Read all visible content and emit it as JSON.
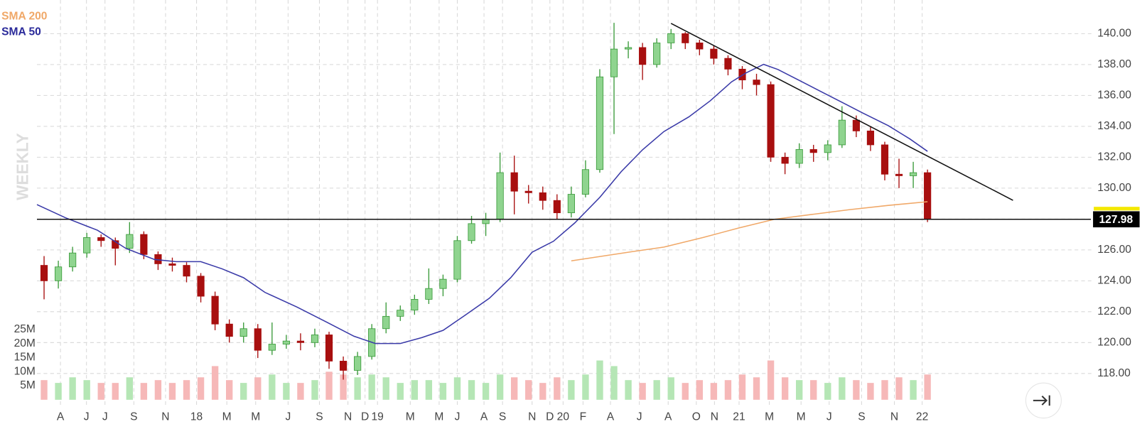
{
  "chart_data": {
    "type": "candlestick",
    "legend": [
      "SMA 200",
      "SMA 50"
    ],
    "period_label": "WEEKLY",
    "x": [
      2,
      6,
      10,
      14,
      18,
      22,
      26,
      30,
      34,
      38,
      42,
      46,
      50,
      54,
      58,
      62,
      66,
      70,
      74,
      78,
      82,
      86,
      90,
      94,
      98,
      102,
      106,
      110,
      114,
      118,
      122,
      126,
      130,
      134,
      138,
      142,
      146,
      150,
      154,
      158,
      162,
      166,
      170,
      174,
      178,
      182,
      186,
      190,
      194,
      198,
      202,
      206,
      210,
      214,
      218,
      222,
      226,
      230,
      234,
      238,
      242,
      246,
      250
    ],
    "open": [
      125.0,
      124.0,
      124.9,
      125.8,
      126.8,
      126.6,
      126.1,
      127.0,
      125.7,
      125.1,
      125.0,
      124.3,
      123.0,
      121.2,
      120.4,
      120.9,
      119.5,
      119.9,
      120.1,
      120.0,
      120.5,
      118.8,
      118.2,
      119.1,
      120.9,
      121.7,
      122.1,
      122.8,
      123.5,
      124.1,
      126.6,
      127.7,
      128.0,
      131.0,
      129.8,
      129.7,
      129.2,
      128.4,
      129.6,
      131.2,
      137.2,
      139.0,
      139.1,
      138.0,
      139.4,
      140.0,
      139.4,
      139.0,
      138.4,
      137.7,
      137.0,
      136.7,
      132.0,
      131.6,
      132.5,
      132.3,
      132.8,
      134.4,
      133.7,
      132.8,
      130.9,
      130.8,
      131.0
    ],
    "high": [
      125.6,
      125.3,
      126.2,
      127.1,
      127.0,
      126.8,
      127.8,
      127.2,
      125.9,
      125.5,
      125.2,
      124.5,
      123.3,
      121.5,
      121.3,
      121.2,
      121.3,
      120.5,
      120.6,
      120.9,
      120.7,
      119.1,
      119.4,
      121.2,
      122.6,
      122.4,
      123.1,
      124.8,
      124.4,
      126.9,
      128.2,
      128.4,
      132.3,
      132.1,
      130.2,
      130.1,
      129.6,
      130.1,
      131.8,
      137.7,
      140.7,
      139.5,
      139.4,
      139.7,
      140.3,
      140.1,
      139.6,
      139.2,
      138.6,
      137.9,
      137.4,
      136.9,
      132.3,
      132.9,
      132.8,
      133.1,
      135.3,
      134.7,
      134.0,
      133.0,
      131.9,
      131.7,
      131.2
    ],
    "low": [
      122.8,
      123.5,
      124.6,
      125.5,
      126.2,
      125.0,
      125.8,
      125.4,
      124.7,
      124.6,
      123.9,
      122.6,
      120.8,
      120.0,
      120.0,
      119.0,
      119.2,
      119.6,
      119.5,
      119.7,
      118.3,
      117.6,
      117.9,
      118.9,
      120.6,
      121.4,
      121.8,
      122.5,
      123.0,
      123.9,
      126.4,
      126.9,
      127.8,
      128.3,
      129.0,
      128.6,
      128.0,
      128.1,
      129.4,
      131.0,
      133.5,
      138.4,
      137.0,
      137.8,
      139.0,
      139.0,
      138.6,
      138.0,
      137.3,
      136.4,
      136.0,
      131.7,
      130.9,
      131.3,
      131.7,
      131.8,
      132.6,
      133.3,
      132.4,
      130.5,
      130.0,
      130.0,
      127.8
    ],
    "close": [
      124.0,
      124.9,
      125.8,
      126.8,
      126.6,
      126.1,
      127.0,
      125.7,
      125.1,
      125.0,
      124.3,
      123.0,
      121.2,
      120.4,
      120.9,
      119.5,
      119.9,
      120.1,
      120.0,
      120.5,
      118.8,
      118.2,
      119.1,
      120.9,
      121.7,
      122.1,
      122.8,
      123.5,
      124.1,
      126.6,
      127.7,
      128.0,
      131.0,
      129.8,
      129.7,
      129.2,
      128.4,
      129.6,
      131.2,
      137.2,
      139.0,
      139.1,
      138.0,
      139.4,
      140.0,
      139.4,
      139.0,
      138.4,
      137.7,
      137.0,
      136.7,
      132.0,
      131.6,
      132.5,
      132.3,
      132.8,
      134.4,
      133.7,
      132.8,
      130.9,
      130.8,
      131.0,
      127.98
    ],
    "volume": [
      7,
      6,
      8,
      7,
      6,
      6,
      8,
      6,
      7,
      6,
      7,
      8,
      12,
      7,
      6,
      8,
      9,
      6,
      6,
      7,
      10,
      9,
      8,
      9,
      8,
      6,
      7,
      7,
      6,
      8,
      7,
      6,
      9,
      8,
      7,
      6,
      8,
      7,
      9,
      14,
      12,
      7,
      6,
      7,
      8,
      6,
      7,
      6,
      7,
      9,
      8,
      14,
      8,
      7,
      7,
      6,
      8,
      7,
      6,
      7,
      8,
      7,
      9
    ],
    "up_color": "#8fd48f",
    "down_color": "#a80f0f",
    "vol_up_color": "#b5e6b5",
    "vol_down_color": "#f6b8b8",
    "sma": [
      {
        "name": "SMA 200",
        "color": "#f0a868",
        "x": [
          150,
          166,
          176,
          187,
          197,
          207,
          218,
          228,
          239,
          250
        ],
        "values": [
          125.29,
          125.85,
          126.18,
          126.8,
          127.42,
          127.98,
          128.31,
          128.6,
          128.88,
          129.12
        ]
      },
      {
        "name": "SMA 50",
        "color": "#3a3aa8",
        "x": [
          0,
          8,
          17,
          25,
          33,
          39,
          46,
          52,
          58,
          64,
          73,
          81,
          89,
          95,
          102,
          108,
          114,
          120,
          127,
          133,
          139,
          145,
          151,
          158,
          164,
          170,
          176,
          183,
          189,
          195,
          199,
          204,
          208,
          214,
          220,
          226,
          232,
          239,
          245,
          250
        ],
        "values": [
          128.93,
          128.08,
          127.27,
          126.09,
          125.38,
          125.24,
          125.24,
          124.77,
          124.2,
          123.25,
          122.3,
          121.36,
          120.41,
          119.94,
          119.94,
          120.32,
          120.79,
          121.74,
          122.87,
          124.2,
          125.85,
          126.56,
          127.75,
          129.4,
          131.06,
          132.48,
          133.66,
          134.61,
          135.65,
          136.88,
          137.45,
          138.01,
          137.68,
          136.97,
          136.26,
          135.55,
          134.84,
          134.04,
          133.19,
          132.38
        ]
      }
    ],
    "trendline": {
      "x": [
        178,
        274
      ],
      "values": [
        140.66,
        129.21
      ]
    },
    "last_price": 127.98,
    "xlim": [
      0,
      296
    ],
    "ylim": [
      116,
      142.2
    ],
    "yticks": [
      {
        "value": 118,
        "label": "118.00"
      },
      {
        "value": 120,
        "label": "120.00"
      },
      {
        "value": 122,
        "label": "122.00"
      },
      {
        "value": 124,
        "label": "124.00"
      },
      {
        "value": 126,
        "label": "126.00"
      },
      {
        "value": 128,
        "label": "128.00"
      },
      {
        "value": 130,
        "label": "130.00"
      },
      {
        "value": 132,
        "label": "132.00"
      },
      {
        "value": 134,
        "label": "134.00"
      },
      {
        "value": 136,
        "label": "136.00"
      },
      {
        "value": 138,
        "label": "138.00"
      },
      {
        "value": 140,
        "label": "140.00"
      }
    ],
    "volume_ylim": [
      0,
      25
    ],
    "volume_ticks": [
      {
        "value": 5,
        "label": "5M"
      },
      {
        "value": 10,
        "label": "10M"
      },
      {
        "value": 15,
        "label": "15M"
      },
      {
        "value": 20,
        "label": "20M"
      },
      {
        "value": 25,
        "label": "25M"
      }
    ],
    "xticks": [
      {
        "value": 6.6,
        "label": "A"
      },
      {
        "value": 13.9,
        "label": "J"
      },
      {
        "value": 19.1,
        "label": "J"
      },
      {
        "value": 27.2,
        "label": "S"
      },
      {
        "value": 36.1,
        "label": "N"
      },
      {
        "value": 44.8,
        "label": "18"
      },
      {
        "value": 53.3,
        "label": "M"
      },
      {
        "value": 61.4,
        "label": "M"
      },
      {
        "value": 70.5,
        "label": "J"
      },
      {
        "value": 79.3,
        "label": "S"
      },
      {
        "value": 87.3,
        "label": "N"
      },
      {
        "value": 92.1,
        "label": "D"
      },
      {
        "value": 95.6,
        "label": "19"
      },
      {
        "value": 104.8,
        "label": "M"
      },
      {
        "value": 112.9,
        "label": "M"
      },
      {
        "value": 118,
        "label": "J"
      },
      {
        "value": 125.5,
        "label": "A"
      },
      {
        "value": 130.7,
        "label": "S"
      },
      {
        "value": 139,
        "label": "N"
      },
      {
        "value": 144,
        "label": "D"
      },
      {
        "value": 147.7,
        "label": "20"
      },
      {
        "value": 153.3,
        "label": "F"
      },
      {
        "value": 161,
        "label": "A"
      },
      {
        "value": 169.1,
        "label": "J"
      },
      {
        "value": 177.2,
        "label": "A"
      },
      {
        "value": 185.1,
        "label": "O"
      },
      {
        "value": 190.2,
        "label": "N"
      },
      {
        "value": 197.1,
        "label": "21"
      },
      {
        "value": 205.6,
        "label": "M"
      },
      {
        "value": 214.5,
        "label": "M"
      },
      {
        "value": 222.4,
        "label": "J"
      },
      {
        "value": 231.5,
        "label": "S"
      },
      {
        "value": 240.7,
        "label": "N"
      },
      {
        "value": 248.5,
        "label": "22"
      }
    ],
    "grid": true
  }
}
